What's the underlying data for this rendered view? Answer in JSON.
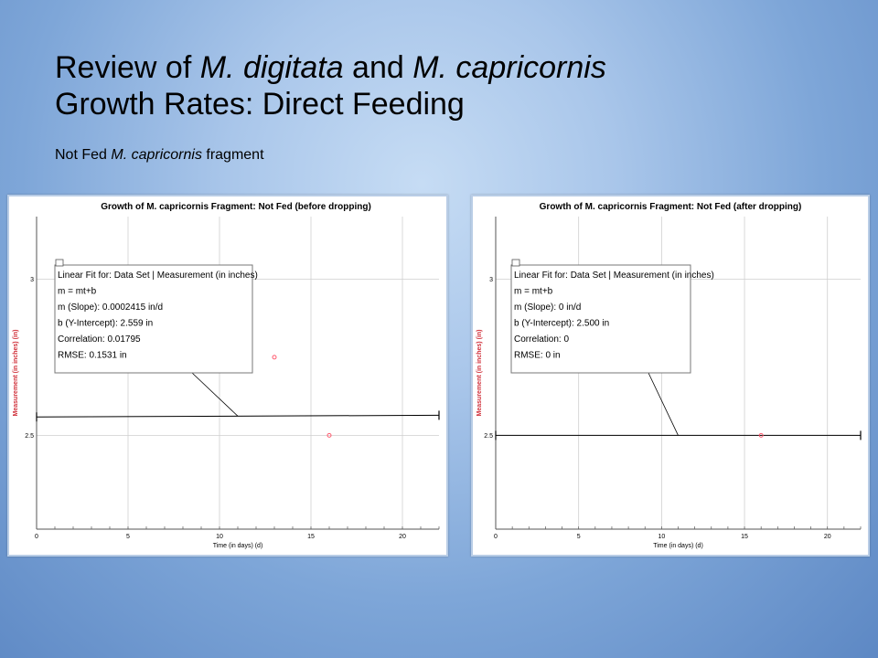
{
  "title": {
    "line1_a": "Review of ",
    "line1_b": "M. digitata",
    "line1_c": " and ",
    "line1_d": "M. capricornis",
    "line2": "Growth Rates: Direct Feeding"
  },
  "subtitle": {
    "a": "Not Fed ",
    "b": "M. capricornis",
    "c": " fragment"
  },
  "colors": {
    "point": "#ff5a6e",
    "ylabel": "#d0303a",
    "grid": "#cfcfcf",
    "fit_line": "#000000"
  },
  "chart_data": [
    {
      "type": "scatter",
      "title": "Growth of M. capricornis Fragment: Not Fed (before dropping)",
      "xlabel": "Time (in days) (d)",
      "ylabel": "Measurement (in inches) (in)",
      "xlim": [
        0,
        22
      ],
      "ylim": [
        2.2,
        3.2
      ],
      "xticks": [
        0,
        5,
        10,
        15,
        20
      ],
      "yticks": [
        2.5,
        3
      ],
      "grid": true,
      "points": [
        {
          "x": 13,
          "y": 2.75
        },
        {
          "x": 16,
          "y": 2.5
        }
      ],
      "fit": {
        "slope": 0.0002415,
        "intercept": 2.559
      },
      "annotation": [
        "Linear Fit for: Data Set | Measurement (in inches)",
        "m = mt+b",
        "m (Slope): 0.0002415 in/d",
        "b (Y-Intercept): 2.559 in",
        "Correlation: 0.01795",
        "RMSE: 0.1531 in"
      ]
    },
    {
      "type": "scatter",
      "title": "Growth of M. capricornis Fragment: Not Fed (after dropping)",
      "xlabel": "Time (in days) (d)",
      "ylabel": "Measurement (in inches) (in)",
      "xlim": [
        0,
        22
      ],
      "ylim": [
        2.2,
        3.2
      ],
      "xticks": [
        0,
        5,
        10,
        15,
        20
      ],
      "yticks": [
        2.5,
        3
      ],
      "grid": true,
      "points": [
        {
          "x": 16,
          "y": 2.5
        }
      ],
      "fit": {
        "slope": 0,
        "intercept": 2.5
      },
      "annotation": [
        "Linear Fit for: Data Set | Measurement (in inches)",
        "m = mt+b",
        "m (Slope): 0 in/d",
        "b (Y-Intercept): 2.500 in",
        "Correlation: 0",
        "RMSE: 0 in"
      ]
    }
  ]
}
